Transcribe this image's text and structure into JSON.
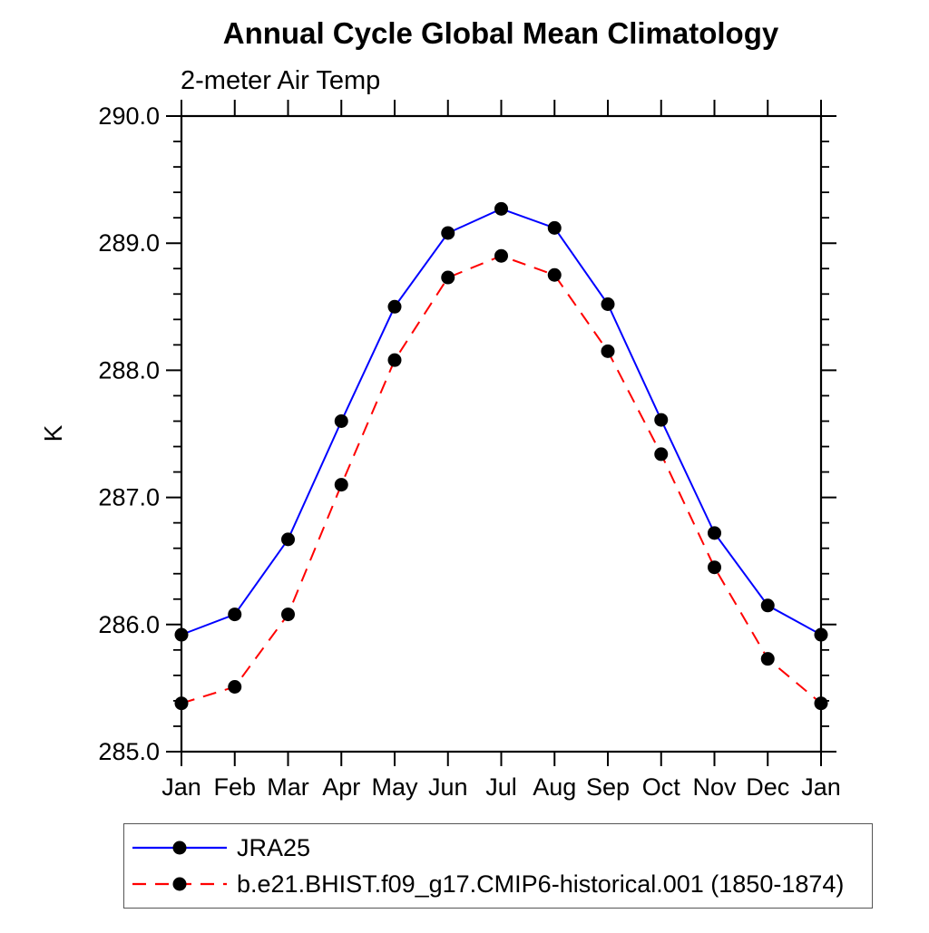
{
  "chart_data": {
    "type": "line",
    "title": "Annual Cycle Global Mean Climatology",
    "subtitle": "2-meter Air Temp",
    "ylabel": "K",
    "categories": [
      "Jan",
      "Feb",
      "Mar",
      "Apr",
      "May",
      "Jun",
      "Jul",
      "Aug",
      "Sep",
      "Oct",
      "Nov",
      "Dec",
      "Jan"
    ],
    "ylim": [
      285.0,
      290.0
    ],
    "ytick_values": [
      285.0,
      286.0,
      287.0,
      288.0,
      289.0,
      290.0
    ],
    "ytick_labels": [
      "285.0",
      "286.0",
      "287.0",
      "288.0",
      "289.0",
      "290.0"
    ],
    "ytick_minor_step": 0.2,
    "grid": false,
    "legend_position": "bottom-left",
    "marker_color": "#000000",
    "axis_color": "#000000",
    "series": [
      {
        "name": "JRA25",
        "color": "#0000ff",
        "line_style": "solid",
        "marker": "filled-circle",
        "values": [
          285.92,
          286.08,
          286.67,
          287.6,
          288.5,
          289.08,
          289.27,
          289.12,
          288.52,
          287.61,
          286.72,
          286.15,
          285.92
        ]
      },
      {
        "name": "b.e21.BHIST.f09_g17.CMIP6-historical.001 (1850-1874)",
        "color": "#ff0000",
        "line_style": "dashed",
        "marker": "filled-circle",
        "values": [
          285.38,
          285.51,
          286.08,
          287.1,
          288.08,
          288.73,
          288.9,
          288.75,
          288.15,
          287.34,
          286.45,
          285.73,
          285.38
        ]
      }
    ]
  }
}
